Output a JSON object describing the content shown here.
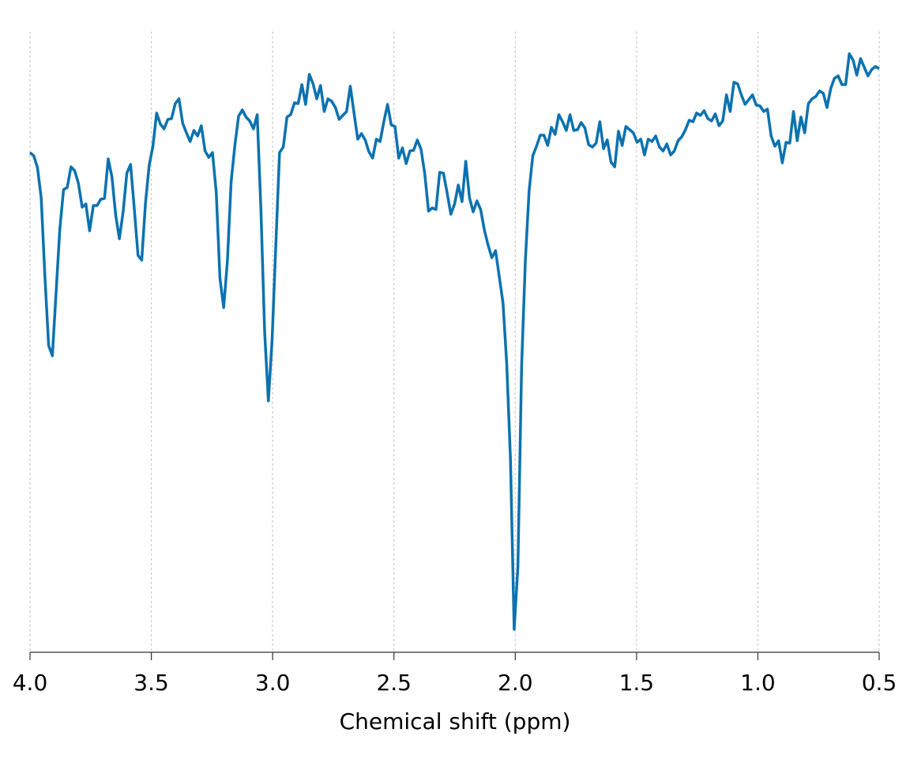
{
  "chart_data": {
    "type": "line",
    "xlabel": "Chemical shift (ppm)",
    "color": "#0b72b0",
    "grid": true,
    "x_reversed": true,
    "xlim": [
      4,
      0.5
    ],
    "xticks": [
      {
        "value": 4,
        "label": "4.0"
      },
      3.5,
      {
        "value": 3,
        "label": "3.0"
      },
      2.5,
      {
        "value": 2,
        "label": "2.0"
      },
      1.5,
      {
        "value": 1,
        "label": "1.0"
      },
      0.5
    ],
    "ylim": [
      0,
      785
    ],
    "x": [
      4,
      3.98465,
      3.9693,
      3.95395,
      3.9386,
      3.92325,
      3.9079,
      3.89255,
      3.8772,
      3.86185,
      3.8465,
      3.83115,
      3.8158,
      3.80045,
      3.7851,
      3.76975,
      3.7544,
      3.73905,
      3.7237,
      3.70835,
      3.693,
      3.67765,
      3.6623,
      3.64695,
      3.6316,
      3.61625,
      3.6009,
      3.58555,
      3.5702,
      3.55485,
      3.5395,
      3.52415,
      3.5088,
      3.49345,
      3.4781,
      3.46275,
      3.4474,
      3.43205,
      3.4167,
      3.40135,
      3.386,
      3.37065,
      3.3553,
      3.33995,
      3.3246,
      3.30925,
      3.2939,
      3.27855,
      3.2632,
      3.24785,
      3.2325,
      3.21715,
      3.2018,
      3.18645,
      3.1711,
      3.15575,
      3.1404,
      3.12505,
      3.1097,
      3.09435,
      3.079,
      3.06365,
      3.0483,
      3.03295,
      3.0176,
      3.00225,
      2.9869,
      2.97155,
      2.9562,
      2.94085,
      2.9255,
      2.91015,
      2.8948,
      2.87945,
      2.8641,
      2.84875,
      2.8334,
      2.81805,
      2.8027,
      2.78735,
      2.772,
      2.75665,
      2.7413,
      2.72595,
      2.7106,
      2.69525,
      2.6799,
      2.66455,
      2.6492,
      2.63385,
      2.6185,
      2.60315,
      2.5878,
      2.57245,
      2.5571,
      2.54175,
      2.5264,
      2.51105,
      2.4957,
      2.48035,
      2.465,
      2.44965,
      2.4343,
      2.41895,
      2.4036,
      2.38825,
      2.3729,
      2.35755,
      2.3422,
      2.32685,
      2.3115,
      2.29615,
      2.2808,
      2.26545,
      2.2501,
      2.23475,
      2.2194,
      2.20405,
      2.1887,
      2.17335,
      2.158,
      2.14265,
      2.1273,
      2.11195,
      2.0966,
      2.08125,
      2.0659,
      2.05055,
      2.0352,
      2.01985,
      2.0045,
      1.98915,
      1.9738,
      1.95845,
      1.9431,
      1.92775,
      1.9124,
      1.89705,
      1.8817,
      1.86635,
      1.851,
      1.83565,
      1.8203,
      1.80495,
      1.7896,
      1.77425,
      1.7589,
      1.74355,
      1.7282,
      1.71285,
      1.6975,
      1.68215,
      1.6668,
      1.65145,
      1.6361,
      1.62075,
      1.6054,
      1.59005,
      1.5747,
      1.55935,
      1.544,
      1.52865,
      1.5133,
      1.49795,
      1.4826,
      1.46725,
      1.4519,
      1.43655,
      1.4212,
      1.40585,
      1.3905,
      1.37515,
      1.3598,
      1.34445,
      1.3291,
      1.31375,
      1.2984,
      1.28305,
      1.2677,
      1.25235,
      1.237,
      1.22165,
      1.2063,
      1.19095,
      1.1756,
      1.16025,
      1.1449,
      1.12955,
      1.1142,
      1.09885,
      1.0835,
      1.06815,
      1.0528,
      1.03745,
      1.0221,
      1.00675,
      0.9914,
      0.97605,
      0.9607,
      0.94535,
      0.93,
      0.91465,
      0.8993,
      0.88395,
      0.8686,
      0.85325,
      0.8379,
      0.82255,
      0.8072,
      0.79185,
      0.7765,
      0.76115,
      0.7458,
      0.73045,
      0.7151,
      0.69975,
      0.6844,
      0.66905,
      0.6537,
      0.63835,
      0.623,
      0.60765,
      0.5923,
      0.57695,
      0.5616,
      0.54625,
      0.5309,
      0.51555,
      0.5002
    ],
    "values": [
      632,
      628,
      613,
      575,
      475,
      388,
      375,
      455,
      535,
      585,
      588,
      614,
      609,
      593,
      563,
      567,
      533,
      565,
      565,
      573,
      574,
      624,
      601,
      553,
      523,
      557,
      606,
      617,
      561,
      502,
      496,
      568,
      616,
      640,
      682,
      668,
      662,
      674,
      675,
      694,
      700,
      669,
      657,
      646,
      660,
      653,
      666,
      634,
      626,
      632,
      582,
      473,
      436,
      495,
      595,
      641,
      678,
      686,
      677,
      672,
      662,
      680,
      560,
      405,
      318,
      395,
      515,
      632,
      639,
      677,
      680,
      695,
      694,
      718,
      693,
      731,
      719,
      700,
      717,
      684,
      700,
      697,
      689,
      674,
      679,
      684,
      716,
      682,
      649,
      656,
      648,
      633,
      625,
      649,
      646,
      671,
      693,
      667,
      665,
      625,
      638,
      618,
      634,
      635,
      648,
      636,
      605,
      558,
      562,
      560,
      607,
      606,
      581,
      554,
      567,
      591,
      570,
      621,
      575,
      557,
      571,
      560,
      534,
      515,
      499,
      508,
      475,
      442,
      365,
      245,
      29,
      108,
      362,
      495,
      583,
      628,
      640,
      654,
      654,
      641,
      664,
      655,
      680,
      671,
      660,
      680,
      660,
      661,
      670,
      663,
      642,
      639,
      644,
      671,
      637,
      648,
      620,
      614,
      659,
      641,
      665,
      661,
      657,
      645,
      649,
      629,
      649,
      646,
      653,
      639,
      634,
      643,
      629,
      634,
      647,
      652,
      661,
      673,
      671,
      682,
      679,
      685,
      675,
      672,
      681,
      666,
      672,
      705,
      684,
      721,
      719,
      705,
      693,
      699,
      705,
      692,
      691,
      684,
      687,
      653,
      640,
      647,
      619,
      645,
      644,
      684,
      647,
      677,
      657,
      694,
      700,
      703,
      710,
      707,
      689,
      713,
      726,
      729,
      718,
      718,
      757,
      749,
      730,
      751,
      740,
      729,
      737,
      741,
      738
    ]
  }
}
